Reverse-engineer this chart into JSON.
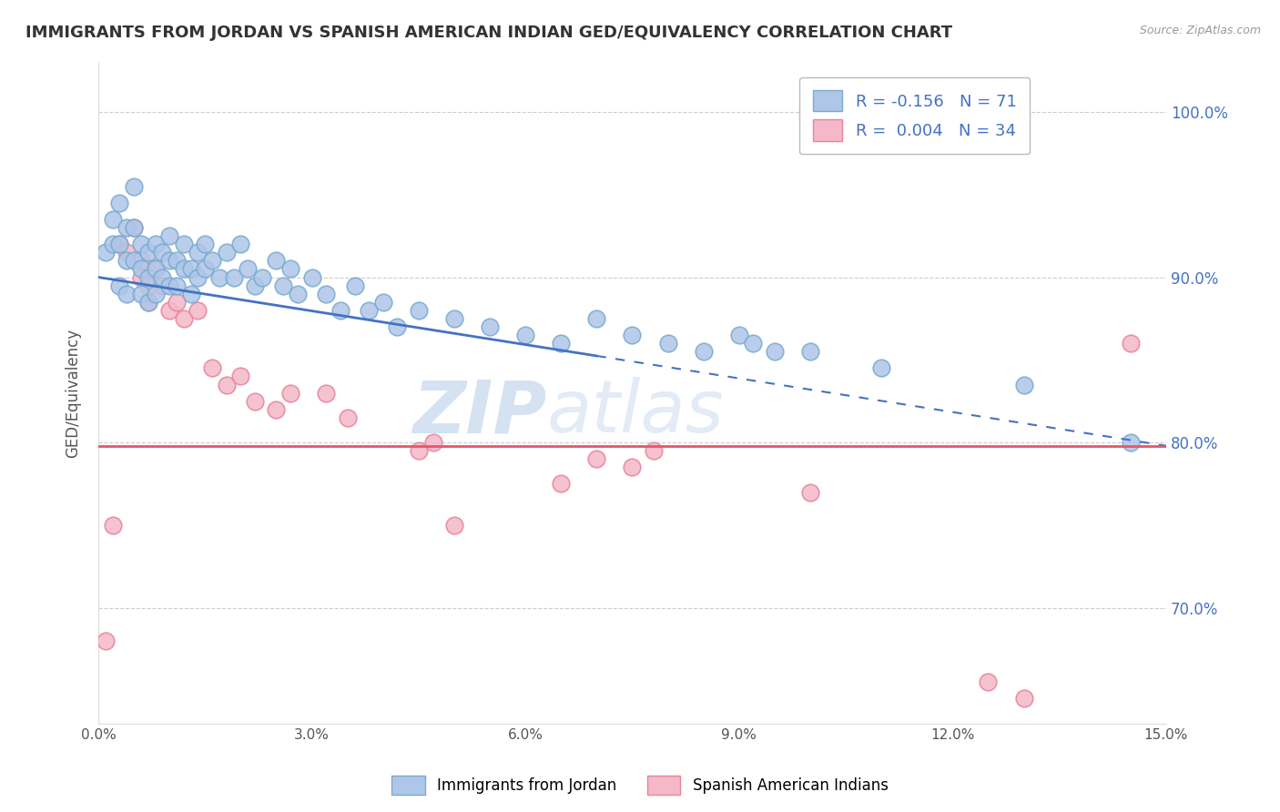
{
  "title": "IMMIGRANTS FROM JORDAN VS SPANISH AMERICAN INDIAN GED/EQUIVALENCY CORRELATION CHART",
  "source": "Source: ZipAtlas.com",
  "ylabel": "GED/Equivalency",
  "xlim": [
    0.0,
    15.0
  ],
  "ylim": [
    63.0,
    103.0
  ],
  "xticks": [
    0.0,
    3.0,
    6.0,
    9.0,
    12.0,
    15.0
  ],
  "xticklabels": [
    "0.0%",
    "3.0%",
    "6.0%",
    "9.0%",
    "12.0%",
    "15.0%"
  ],
  "yticks": [
    70.0,
    80.0,
    90.0,
    100.0
  ],
  "yticklabels": [
    "70.0%",
    "80.0%",
    "90.0%",
    "100.0%"
  ],
  "legend_entries": [
    {
      "label": "R = -0.156   N = 71",
      "color": "#aec6e8"
    },
    {
      "label": "R =  0.004   N = 34",
      "color": "#f4b8c8"
    }
  ],
  "legend_labels": [
    "Immigrants from Jordan",
    "Spanish American Indians"
  ],
  "blue_color": "#aec6e8",
  "pink_color": "#f4b8c8",
  "blue_edge": "#7aaad0",
  "pink_edge": "#e8849a",
  "blue_trend_color": "#4472c4",
  "pink_trend_color": "#e8546a",
  "watermark_zip": "ZIP",
  "watermark_atlas": "atlas",
  "blue_trend_y0": 90.0,
  "blue_trend_y15": 79.8,
  "blue_trend_solid_x": 7.0,
  "pink_trend_y": 79.8,
  "blue_x": [
    0.1,
    0.2,
    0.2,
    0.3,
    0.3,
    0.3,
    0.4,
    0.4,
    0.4,
    0.5,
    0.5,
    0.5,
    0.6,
    0.6,
    0.6,
    0.7,
    0.7,
    0.7,
    0.8,
    0.8,
    0.8,
    0.9,
    0.9,
    1.0,
    1.0,
    1.0,
    1.1,
    1.1,
    1.2,
    1.2,
    1.3,
    1.3,
    1.4,
    1.4,
    1.5,
    1.5,
    1.6,
    1.7,
    1.8,
    1.9,
    2.0,
    2.1,
    2.2,
    2.3,
    2.5,
    2.6,
    2.7,
    2.8,
    3.0,
    3.2,
    3.4,
    3.6,
    3.8,
    4.0,
    4.2,
    4.5,
    5.0,
    5.5,
    6.0,
    6.5,
    7.0,
    7.5,
    8.0,
    8.5,
    9.0,
    9.2,
    9.5,
    10.0,
    11.0,
    13.0,
    14.5
  ],
  "blue_y": [
    91.5,
    92.0,
    93.5,
    94.5,
    92.0,
    89.5,
    93.0,
    91.0,
    89.0,
    95.5,
    93.0,
    91.0,
    92.0,
    90.5,
    89.0,
    91.5,
    90.0,
    88.5,
    92.0,
    90.5,
    89.0,
    91.5,
    90.0,
    92.5,
    91.0,
    89.5,
    91.0,
    89.5,
    92.0,
    90.5,
    90.5,
    89.0,
    91.5,
    90.0,
    92.0,
    90.5,
    91.0,
    90.0,
    91.5,
    90.0,
    92.0,
    90.5,
    89.5,
    90.0,
    91.0,
    89.5,
    90.5,
    89.0,
    90.0,
    89.0,
    88.0,
    89.5,
    88.0,
    88.5,
    87.0,
    88.0,
    87.5,
    87.0,
    86.5,
    86.0,
    87.5,
    86.5,
    86.0,
    85.5,
    86.5,
    86.0,
    85.5,
    85.5,
    84.5,
    83.5,
    80.0
  ],
  "pink_x": [
    0.1,
    0.2,
    0.3,
    0.4,
    0.5,
    0.6,
    0.6,
    0.7,
    0.7,
    0.8,
    0.9,
    1.0,
    1.1,
    1.2,
    1.4,
    1.6,
    1.8,
    2.0,
    2.2,
    2.5,
    2.7,
    3.2,
    3.5,
    4.5,
    4.7,
    5.0,
    6.5,
    7.0,
    7.5,
    7.8,
    10.0,
    12.5,
    13.0,
    14.5
  ],
  "pink_y": [
    68.0,
    75.0,
    92.0,
    91.5,
    93.0,
    91.0,
    90.0,
    89.5,
    88.5,
    90.5,
    89.5,
    88.0,
    88.5,
    87.5,
    88.0,
    84.5,
    83.5,
    84.0,
    82.5,
    82.0,
    83.0,
    83.0,
    81.5,
    79.5,
    80.0,
    75.0,
    77.5,
    79.0,
    78.5,
    79.5,
    77.0,
    65.5,
    64.5,
    86.0
  ]
}
